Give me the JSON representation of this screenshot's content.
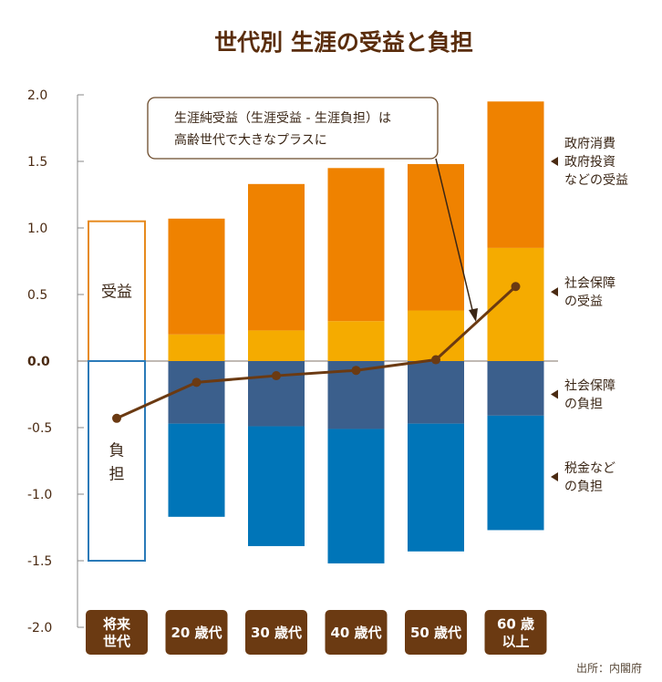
{
  "chart_data": {
    "type": "bar",
    "title": "世代別 生涯の受益と負担",
    "ylim": [
      -2.0,
      2.0
    ],
    "yticks": [
      "2.0",
      "1.5",
      "1.0",
      "0.5",
      "0.0",
      "-0.5",
      "-1.0",
      "-1.5",
      "-2.0"
    ],
    "categories": [
      {
        "key": "future",
        "lines": [
          "将来",
          "世代"
        ]
      },
      {
        "key": "20s",
        "lines": [
          "20 歳代"
        ]
      },
      {
        "key": "30s",
        "lines": [
          "30 歳代"
        ]
      },
      {
        "key": "40s",
        "lines": [
          "40 歳代"
        ]
      },
      {
        "key": "50s",
        "lines": [
          "50 歳代"
        ]
      },
      {
        "key": "60s",
        "lines": [
          "60 歳",
          "以上"
        ]
      }
    ],
    "series": [
      {
        "name": "社会保障の受益",
        "color": "#f5ab00",
        "values": [
          null,
          0.2,
          0.23,
          0.3,
          0.38,
          0.85
        ]
      },
      {
        "name": "政府消費・政府投資などの受益",
        "color": "#ef8200",
        "values": [
          null,
          0.87,
          1.1,
          1.15,
          1.1,
          1.1
        ]
      },
      {
        "name": "社会保障の負担",
        "color": "#3b5f8c",
        "values": [
          null,
          -0.47,
          -0.49,
          -0.51,
          -0.47,
          -0.41
        ]
      },
      {
        "name": "税金などの負担",
        "color": "#0075b8",
        "values": [
          null,
          -0.7,
          -0.9,
          -1.01,
          -0.96,
          -0.86
        ]
      }
    ],
    "future_generation": {
      "benefit_total": 1.05,
      "burden_total": -1.5,
      "benefit_label": "受益",
      "burden_label": [
        "負",
        "担"
      ]
    },
    "line": {
      "name": "生涯純受益",
      "color": "#6b3a12",
      "values": [
        -0.43,
        -0.16,
        -0.11,
        -0.07,
        0.01,
        0.56
      ]
    },
    "legend": [
      {
        "lines": [
          "政府消費",
          "政府投資",
          "などの受益"
        ],
        "anchor_value": 1.5
      },
      {
        "lines": [
          "社会保障",
          "の受益"
        ],
        "anchor_value": 0.52
      },
      {
        "lines": [
          "社会保障",
          "の負担"
        ],
        "anchor_value": -0.25
      },
      {
        "lines": [
          "税金など",
          "の負担"
        ],
        "anchor_value": -0.87
      }
    ],
    "annotation": {
      "lines": [
        "生涯純受益（生涯受益 - 生涯負担）は",
        "高齢世代で大きなプラスに"
      ]
    },
    "source": "出所：内閣府",
    "colors": {
      "title": "#5a2d0c",
      "axis": "#8a8a8a",
      "category_box": "#6b3a12",
      "future_benefit_border": "#e68a1e",
      "future_burden_border": "#2a7ab8"
    }
  }
}
